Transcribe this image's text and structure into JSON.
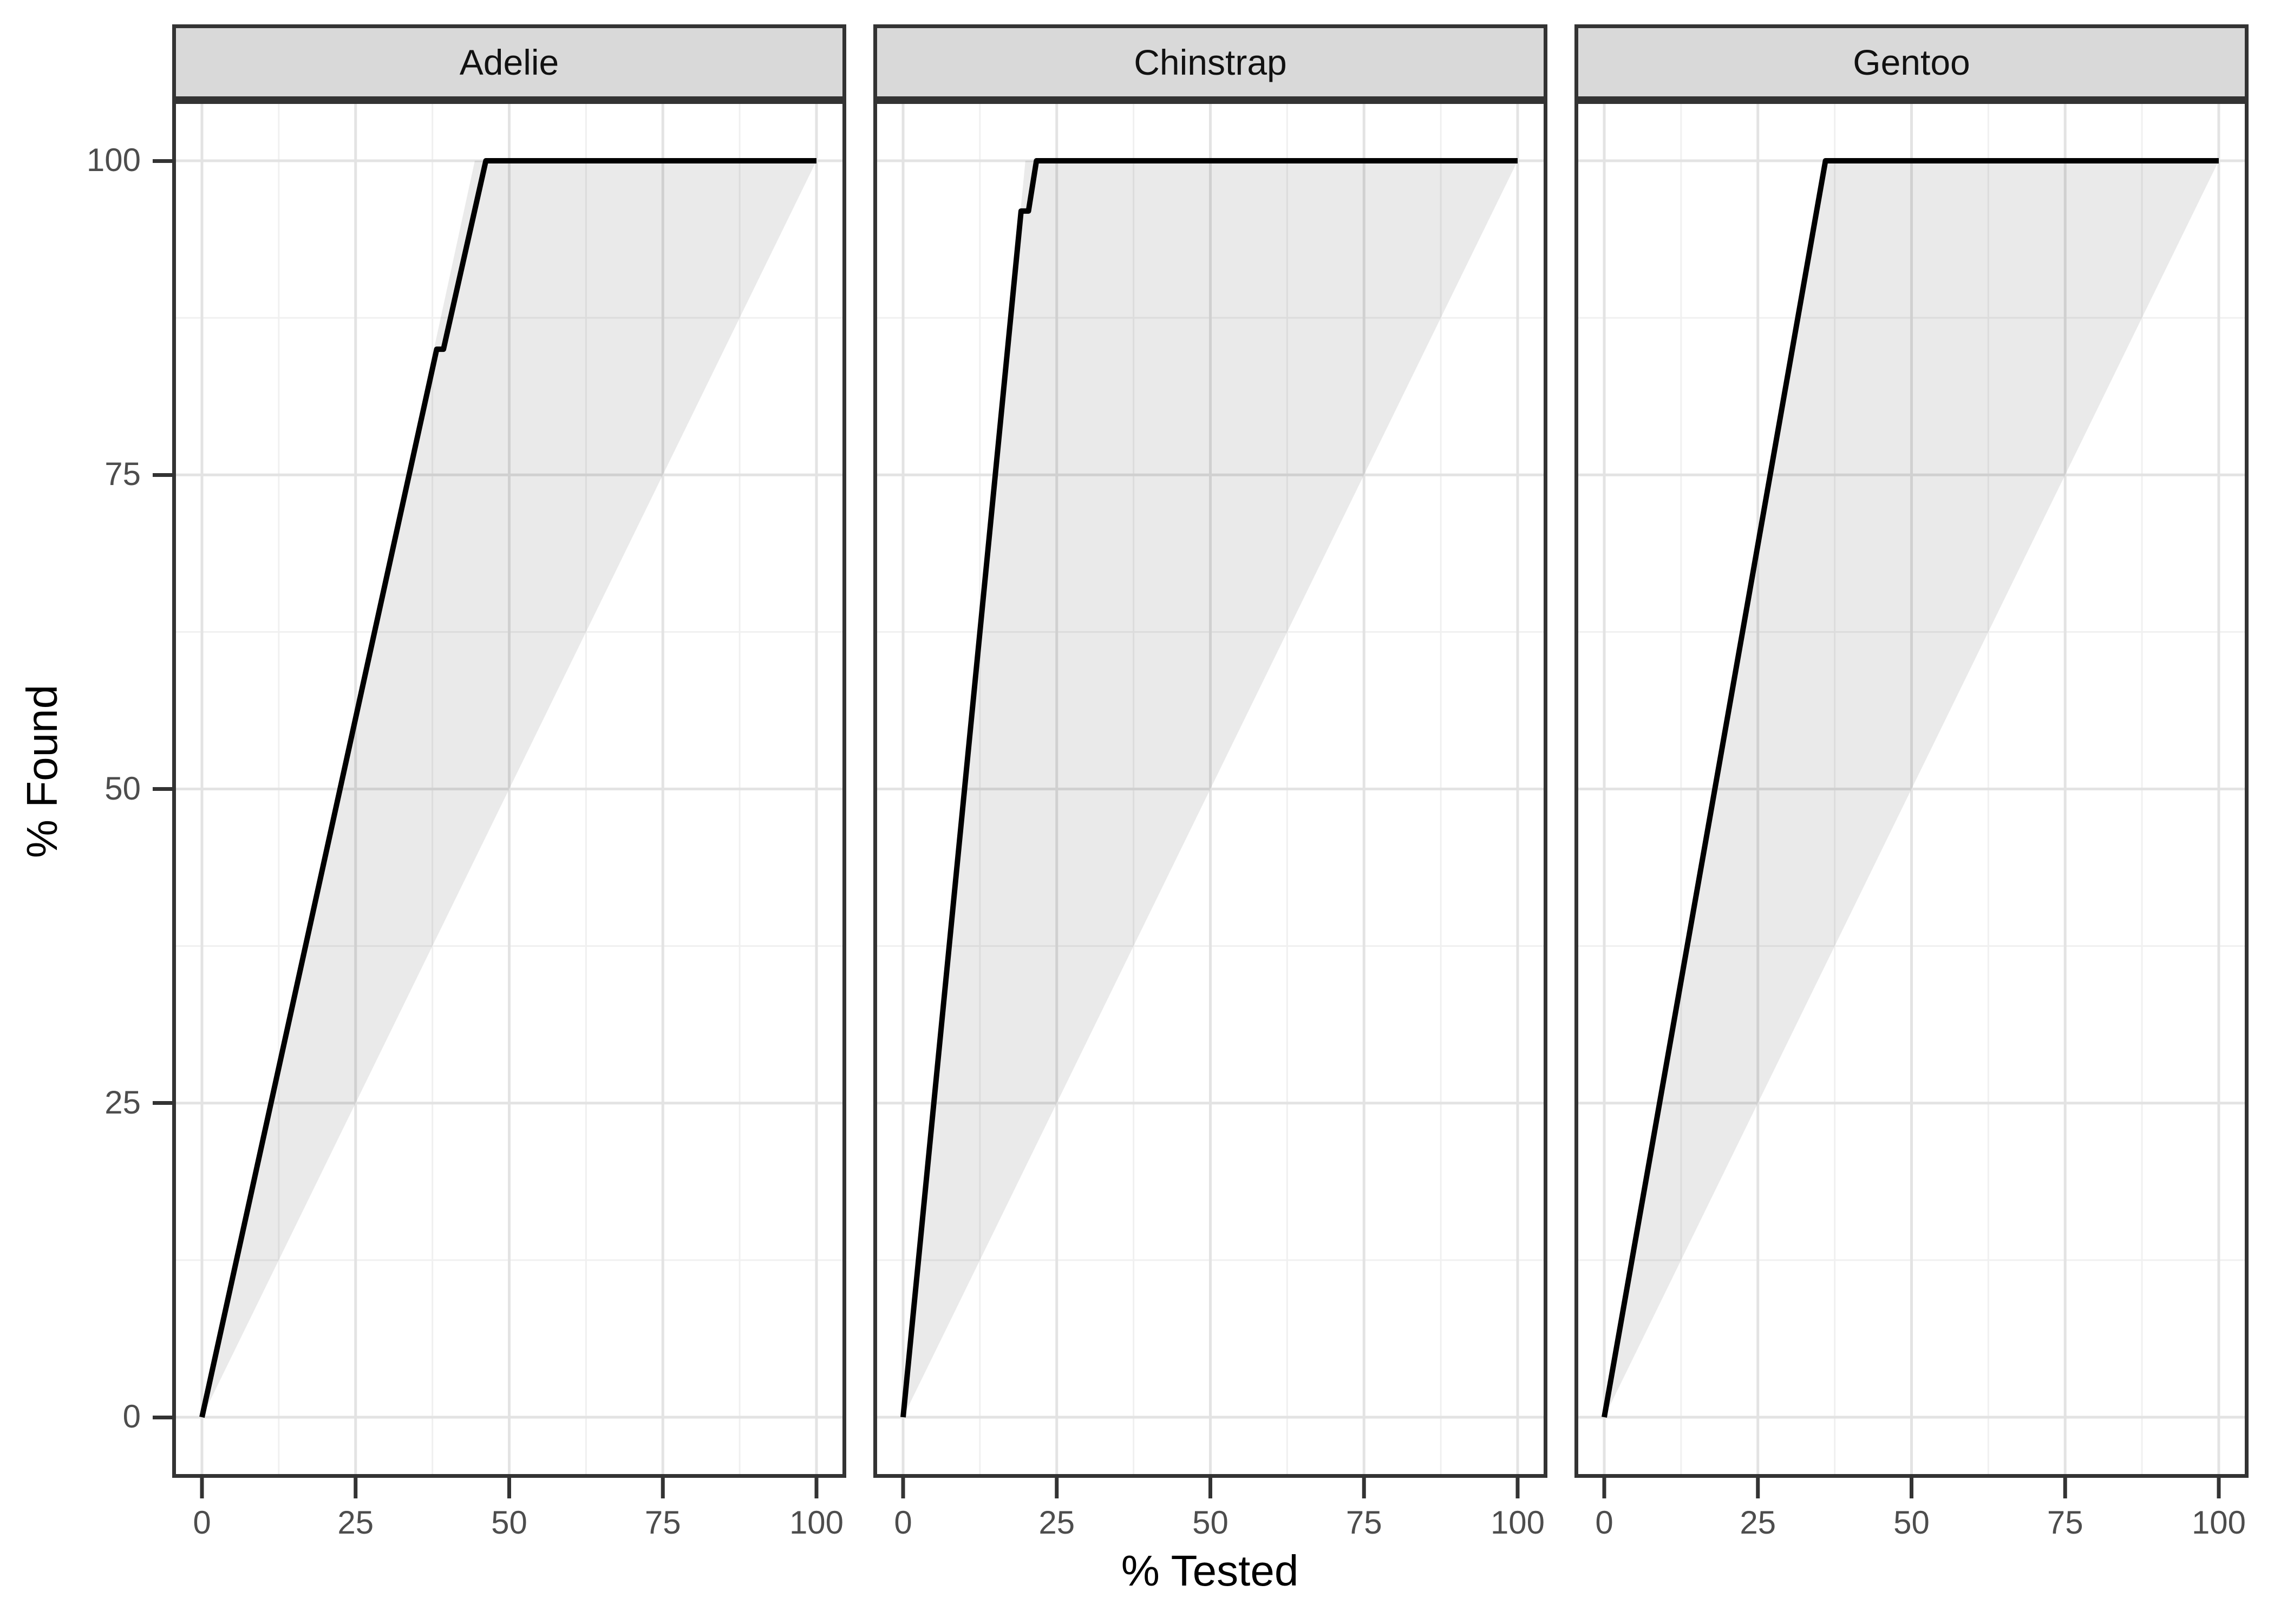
{
  "chart_data": {
    "type": "line",
    "title": "",
    "xlabel": "% Tested",
    "ylabel": "% Found",
    "x_range": [
      0,
      100
    ],
    "y_range": [
      0,
      100
    ],
    "x_ticks": [
      0,
      25,
      50,
      75,
      100
    ],
    "y_ticks": [
      0,
      25,
      50,
      75,
      100
    ],
    "minor_ticks": [
      12.5,
      37.5,
      62.5,
      87.5
    ],
    "grid": true,
    "legend": "none",
    "facets": [
      {
        "label": "Adelie",
        "curve": [
          [
            0,
            0
          ],
          [
            38.2,
            85
          ],
          [
            39.3,
            85
          ],
          [
            46.2,
            100
          ],
          [
            100,
            100
          ]
        ],
        "wedge": [
          [
            0,
            0
          ],
          [
            44.4,
            100
          ],
          [
            100,
            100
          ]
        ]
      },
      {
        "label": "Chinstrap",
        "curve": [
          [
            0,
            0
          ],
          [
            19.2,
            96
          ],
          [
            20.4,
            96
          ],
          [
            21.7,
            100
          ],
          [
            100,
            100
          ]
        ],
        "wedge": [
          [
            0,
            0
          ],
          [
            19.9,
            100
          ],
          [
            100,
            100
          ]
        ]
      },
      {
        "label": "Gentoo",
        "curve": [
          [
            0,
            0
          ],
          [
            36,
            100
          ],
          [
            100,
            100
          ]
        ],
        "wedge": [
          [
            0,
            0
          ],
          [
            36,
            100
          ],
          [
            100,
            100
          ]
        ]
      }
    ],
    "colors": {
      "curve": "#000000",
      "wedge_fill": "rgba(0,0,0,0.082)",
      "grid_major": "#E3E3E3",
      "grid_minor": "#F0F0F0",
      "panel_border": "#333333",
      "strip_fill": "#D9D9D9",
      "tick_mark": "#333333",
      "tick_text": "#4D4D4D",
      "title_text": "#000000"
    }
  }
}
